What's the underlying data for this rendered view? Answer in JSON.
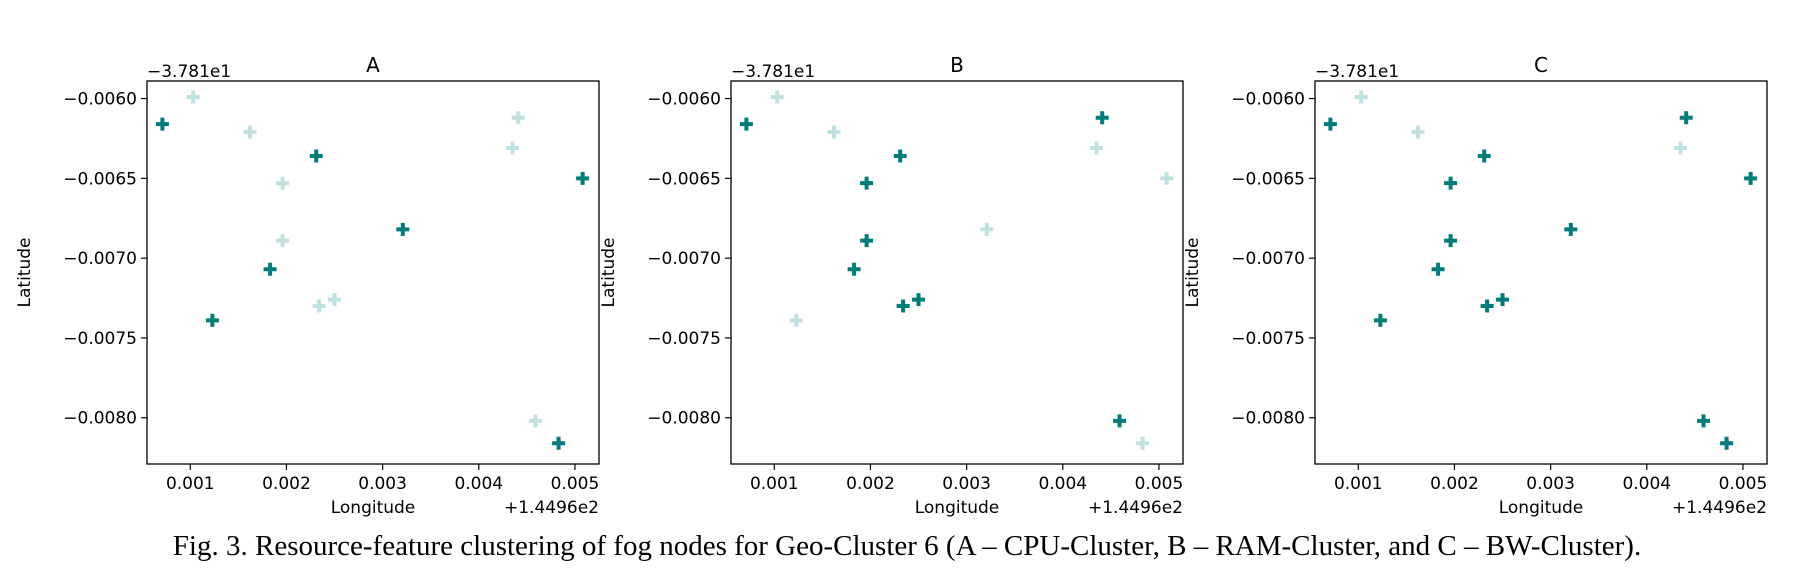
{
  "caption": "Fig. 3.  Resource-feature clustering of fog nodes for Geo-Cluster 6 (A – CPU-Cluster, B – RAM-Cluster, and C – BW-Cluster).",
  "colors": {
    "selected": "#007c7a",
    "unselected": "#bfe1df"
  },
  "chart_data": [
    {
      "type": "scatter",
      "title": "A",
      "xlabel": "Longitude",
      "ylabel": "Latitude",
      "x_offset_label": "+1.4496e2",
      "y_offset_label": "−3.781e1",
      "xlim": [
        0.00055,
        0.00525
      ],
      "ylim": [
        -0.00829,
        -0.00589
      ],
      "xticks": [
        0.001,
        0.002,
        0.003,
        0.004,
        0.005
      ],
      "xtick_labels": [
        "0.001",
        "0.002",
        "0.003",
        "0.004",
        "0.005"
      ],
      "yticks": [
        -0.006,
        -0.0065,
        -0.007,
        -0.0075,
        -0.008
      ],
      "ytick_labels": [
        "−0.0060",
        "−0.0065",
        "−0.0070",
        "−0.0075",
        "−0.0080"
      ],
      "marker": "plus",
      "points": [
        {
          "x": 0.00071,
          "y": -0.00616,
          "selected": true
        },
        {
          "x": 0.00103,
          "y": -0.00599,
          "selected": false
        },
        {
          "x": 0.00162,
          "y": -0.00621,
          "selected": false
        },
        {
          "x": 0.00231,
          "y": -0.00636,
          "selected": true
        },
        {
          "x": 0.00196,
          "y": -0.00653,
          "selected": false
        },
        {
          "x": 0.00196,
          "y": -0.00689,
          "selected": false
        },
        {
          "x": 0.00183,
          "y": -0.00707,
          "selected": true
        },
        {
          "x": 0.00321,
          "y": -0.00682,
          "selected": true
        },
        {
          "x": 0.00234,
          "y": -0.0073,
          "selected": false
        },
        {
          "x": 0.0025,
          "y": -0.00726,
          "selected": false
        },
        {
          "x": 0.00123,
          "y": -0.00739,
          "selected": true
        },
        {
          "x": 0.00441,
          "y": -0.00612,
          "selected": false
        },
        {
          "x": 0.00435,
          "y": -0.00631,
          "selected": false
        },
        {
          "x": 0.00508,
          "y": -0.0065,
          "selected": true
        },
        {
          "x": 0.00459,
          "y": -0.00802,
          "selected": false
        },
        {
          "x": 0.00483,
          "y": -0.00816,
          "selected": true
        }
      ]
    },
    {
      "type": "scatter",
      "title": "B",
      "xlabel": "Longitude",
      "ylabel": "Latitude",
      "x_offset_label": "+1.4496e2",
      "y_offset_label": "−3.781e1",
      "xlim": [
        0.00055,
        0.00525
      ],
      "ylim": [
        -0.00829,
        -0.00589
      ],
      "xticks": [
        0.001,
        0.002,
        0.003,
        0.004,
        0.005
      ],
      "xtick_labels": [
        "0.001",
        "0.002",
        "0.003",
        "0.004",
        "0.005"
      ],
      "yticks": [
        -0.006,
        -0.0065,
        -0.007,
        -0.0075,
        -0.008
      ],
      "ytick_labels": [
        "−0.0060",
        "−0.0065",
        "−0.0070",
        "−0.0075",
        "−0.0080"
      ],
      "marker": "plus",
      "points": [
        {
          "x": 0.00071,
          "y": -0.00616,
          "selected": true
        },
        {
          "x": 0.00103,
          "y": -0.00599,
          "selected": false
        },
        {
          "x": 0.00162,
          "y": -0.00621,
          "selected": false
        },
        {
          "x": 0.00231,
          "y": -0.00636,
          "selected": true
        },
        {
          "x": 0.00196,
          "y": -0.00653,
          "selected": true
        },
        {
          "x": 0.00196,
          "y": -0.00689,
          "selected": true
        },
        {
          "x": 0.00183,
          "y": -0.00707,
          "selected": true
        },
        {
          "x": 0.00321,
          "y": -0.00682,
          "selected": false
        },
        {
          "x": 0.00234,
          "y": -0.0073,
          "selected": true
        },
        {
          "x": 0.0025,
          "y": -0.00726,
          "selected": true
        },
        {
          "x": 0.00123,
          "y": -0.00739,
          "selected": false
        },
        {
          "x": 0.00441,
          "y": -0.00612,
          "selected": true
        },
        {
          "x": 0.00435,
          "y": -0.00631,
          "selected": false
        },
        {
          "x": 0.00508,
          "y": -0.0065,
          "selected": false
        },
        {
          "x": 0.00459,
          "y": -0.00802,
          "selected": true
        },
        {
          "x": 0.00483,
          "y": -0.00816,
          "selected": false
        }
      ]
    },
    {
      "type": "scatter",
      "title": "C",
      "xlabel": "Longitude",
      "ylabel": "Latitude",
      "x_offset_label": "+1.4496e2",
      "y_offset_label": "−3.781e1",
      "xlim": [
        0.00055,
        0.00525
      ],
      "ylim": [
        -0.00829,
        -0.00589
      ],
      "xticks": [
        0.001,
        0.002,
        0.003,
        0.004,
        0.005
      ],
      "xtick_labels": [
        "0.001",
        "0.002",
        "0.003",
        "0.004",
        "0.005"
      ],
      "yticks": [
        -0.006,
        -0.0065,
        -0.007,
        -0.0075,
        -0.008
      ],
      "ytick_labels": [
        "−0.0060",
        "−0.0065",
        "−0.0070",
        "−0.0075",
        "−0.0080"
      ],
      "marker": "plus",
      "points": [
        {
          "x": 0.00071,
          "y": -0.00616,
          "selected": true
        },
        {
          "x": 0.00103,
          "y": -0.00599,
          "selected": false
        },
        {
          "x": 0.00162,
          "y": -0.00621,
          "selected": false
        },
        {
          "x": 0.00231,
          "y": -0.00636,
          "selected": true
        },
        {
          "x": 0.00196,
          "y": -0.00653,
          "selected": true
        },
        {
          "x": 0.00196,
          "y": -0.00689,
          "selected": true
        },
        {
          "x": 0.00183,
          "y": -0.00707,
          "selected": true
        },
        {
          "x": 0.00321,
          "y": -0.00682,
          "selected": true
        },
        {
          "x": 0.00234,
          "y": -0.0073,
          "selected": true
        },
        {
          "x": 0.0025,
          "y": -0.00726,
          "selected": true
        },
        {
          "x": 0.00123,
          "y": -0.00739,
          "selected": true
        },
        {
          "x": 0.00441,
          "y": -0.00612,
          "selected": true
        },
        {
          "x": 0.00435,
          "y": -0.00631,
          "selected": false
        },
        {
          "x": 0.00508,
          "y": -0.0065,
          "selected": true
        },
        {
          "x": 0.00459,
          "y": -0.00802,
          "selected": true
        },
        {
          "x": 0.00483,
          "y": -0.00816,
          "selected": true
        }
      ]
    }
  ]
}
